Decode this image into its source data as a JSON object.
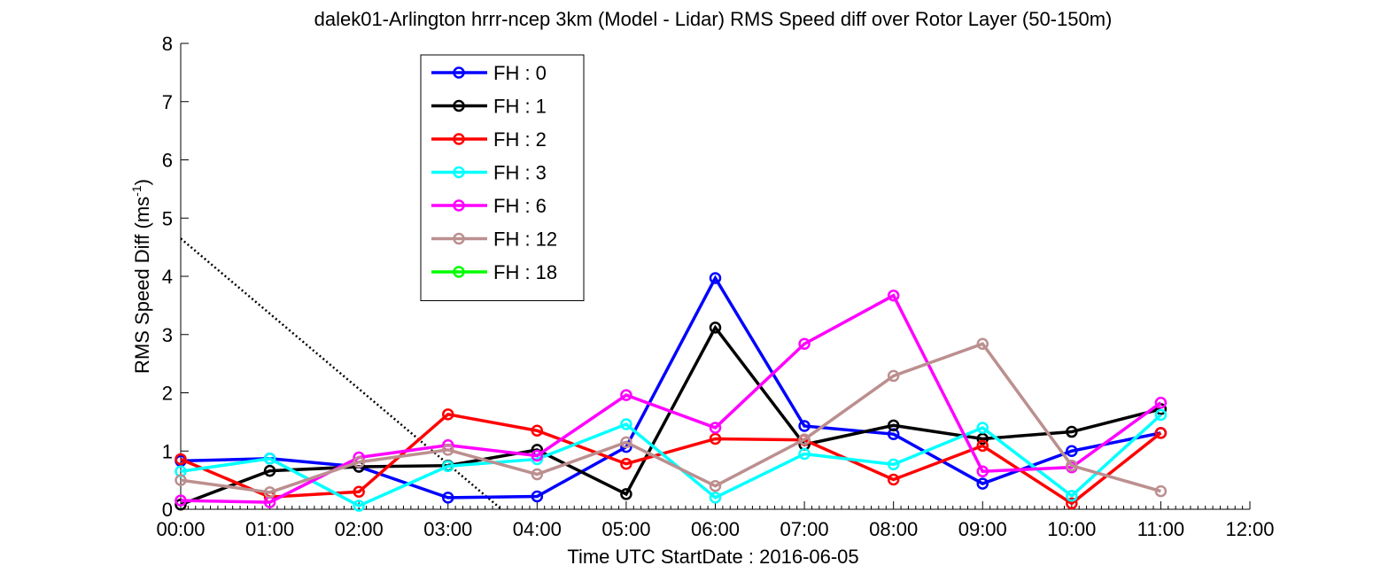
{
  "chart_data": {
    "type": "line",
    "title": "dalek01-Arlington hrrr-ncep 3km (Model - Lidar) RMS Speed diff over Rotor Layer (50-150m)",
    "xlabel": "Time UTC    StartDate : 2016-06-05",
    "ylabel_main": "RMS Speed Diff (ms",
    "ylabel_sup": "-1",
    "ylabel_close": ")",
    "x_ticks": [
      "00:00",
      "01:00",
      "02:00",
      "03:00",
      "04:00",
      "05:00",
      "06:00",
      "07:00",
      "08:00",
      "09:00",
      "10:00",
      "11:00",
      "12:00"
    ],
    "y_ticks": [
      "0",
      "1",
      "2",
      "3",
      "4",
      "5",
      "6",
      "7",
      "8"
    ],
    "xlim": [
      0,
      12
    ],
    "ylim": [
      0,
      8
    ],
    "grid": false,
    "legend_position": "top-left",
    "series": [
      {
        "name": "FH : 0",
        "color": "#0000ff",
        "x": [
          0,
          1,
          2,
          3,
          4,
          5,
          6,
          7,
          8,
          9,
          10,
          11
        ],
        "values": [
          0.83,
          0.87,
          0.73,
          0.2,
          0.22,
          1.07,
          3.97,
          1.43,
          1.29,
          0.44,
          1.0,
          1.31
        ]
      },
      {
        "name": "FH : 1",
        "color": "#000000",
        "x": [
          0,
          1,
          2,
          3,
          4,
          5,
          6,
          7,
          8,
          9,
          10,
          11
        ],
        "values": [
          0.08,
          0.66,
          0.73,
          0.75,
          1.02,
          0.26,
          3.12,
          1.11,
          1.44,
          1.21,
          1.33,
          1.72
        ]
      },
      {
        "name": "FH : 2",
        "color": "#ff0000",
        "x": [
          0,
          1,
          2,
          3,
          4,
          5,
          6,
          7,
          8,
          9,
          10,
          11
        ],
        "values": [
          0.86,
          0.21,
          0.3,
          1.63,
          1.35,
          0.78,
          1.21,
          1.19,
          0.51,
          1.09,
          0.1,
          1.31
        ]
      },
      {
        "name": "FH : 3",
        "color": "#00ffff",
        "x": [
          0,
          1,
          2,
          3,
          4,
          5,
          6,
          7,
          8,
          9,
          10,
          11
        ],
        "values": [
          0.65,
          0.87,
          0.06,
          0.74,
          0.86,
          1.46,
          0.2,
          0.95,
          0.77,
          1.4,
          0.23,
          1.62
        ]
      },
      {
        "name": "FH : 6",
        "color": "#ff00ff",
        "x": [
          0,
          1,
          2,
          3,
          4,
          5,
          6,
          7,
          8,
          9,
          10,
          11
        ],
        "values": [
          0.15,
          0.12,
          0.89,
          1.1,
          0.92,
          1.96,
          1.4,
          2.84,
          3.67,
          0.65,
          0.72,
          1.83
        ]
      },
      {
        "name": "FH : 12",
        "color": "#bc8f8f",
        "x": [
          0,
          1,
          2,
          3,
          4,
          5,
          6,
          7,
          8,
          9,
          10,
          11
        ],
        "values": [
          0.5,
          0.29,
          0.81,
          1.02,
          0.6,
          1.15,
          0.4,
          1.2,
          2.29,
          2.84,
          0.75,
          0.31
        ]
      },
      {
        "name": "FH : 18",
        "color": "#00ff00",
        "x": [],
        "values": []
      }
    ],
    "dotted_line": {
      "color": "#000000",
      "x": [
        0,
        3.6
      ],
      "values": [
        4.65,
        0
      ]
    }
  }
}
